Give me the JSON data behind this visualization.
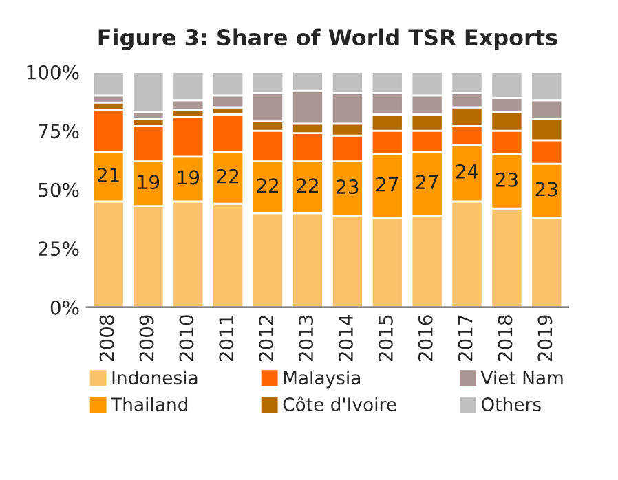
{
  "chart_data": {
    "type": "bar",
    "title": "Figure 3: Share of World TSR Exports",
    "stacked": true,
    "categories": [
      "2008",
      "2009",
      "2010",
      "2011",
      "2012",
      "2013",
      "2014",
      "2015",
      "2016",
      "2017",
      "2018",
      "2019"
    ],
    "series": [
      {
        "name": "Indonesia",
        "color": "#fcc26b",
        "values": [
          45,
          43,
          45,
          44,
          40,
          40,
          39,
          38,
          39,
          45,
          42,
          38
        ]
      },
      {
        "name": "Thailand",
        "color": "#ff9900",
        "values": [
          21,
          19,
          19,
          22,
          22,
          22,
          23,
          27,
          27,
          24,
          23,
          23
        ],
        "value_labels": [
          "21",
          "19",
          "19",
          "22",
          "22",
          "22",
          "23",
          "27",
          "27",
          "24",
          "23",
          "23"
        ]
      },
      {
        "name": "Malaysia",
        "color": "#ff6600",
        "values": [
          18,
          15,
          17,
          16,
          13,
          12,
          11,
          10,
          9,
          8,
          10,
          10
        ]
      },
      {
        "name": "Côte d'Ivoire",
        "color": "#b36b00",
        "values": [
          3,
          3,
          3,
          3,
          4,
          4,
          5,
          7,
          7,
          8,
          8,
          9
        ]
      },
      {
        "name": "Viet Nam",
        "color": "#aa9694",
        "values": [
          3,
          3,
          4,
          5,
          12,
          14,
          13,
          9,
          8,
          6,
          6,
          8
        ]
      },
      {
        "name": "Others",
        "color": "#c0c0c0",
        "values": [
          10,
          17,
          12,
          10,
          9,
          8,
          9,
          9,
          10,
          9,
          11,
          12
        ]
      }
    ],
    "ylim": [
      0,
      100
    ],
    "yticks": [
      {
        "value": 0,
        "label": "0%"
      },
      {
        "value": 25,
        "label": "25%"
      },
      {
        "value": 50,
        "label": "50%"
      },
      {
        "value": 75,
        "label": "75%"
      },
      {
        "value": 100,
        "label": "100%"
      }
    ],
    "grid": false,
    "legend": "bottom"
  }
}
